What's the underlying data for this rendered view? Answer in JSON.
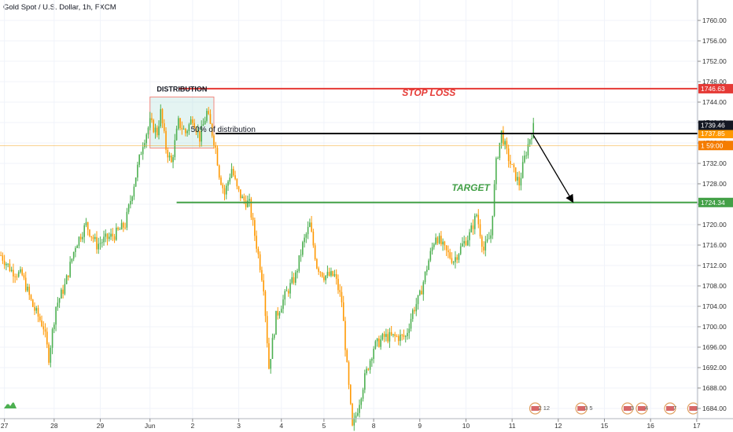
{
  "window": {
    "title": "Gold Spot / U.S. Dollar, 1h, FXCM"
  },
  "colors": {
    "up": "#4caf50",
    "down": "#ff9800",
    "stop": "#e53935",
    "target": "#43a047",
    "mid": "#000000",
    "current": "#f5a623"
  },
  "chart_data": {
    "type": "candlestick",
    "title": "Gold Spot / U.S. Dollar, 1h, FXCM",
    "ylim": [
      1682,
      1764
    ],
    "y_ticks": [
      1684,
      1688,
      1692,
      1696,
      1700,
      1704,
      1708,
      1712,
      1716,
      1720,
      1724,
      1728,
      1732,
      1736,
      1740,
      1744,
      1748,
      1752,
      1756,
      1760
    ],
    "x_ticks": [
      "27",
      "28",
      "29",
      "Jun",
      "2",
      "3",
      "4",
      "5",
      "8",
      "9",
      "10",
      "11",
      "12",
      "15",
      "16",
      "17"
    ],
    "x_tick_index": [
      2,
      30,
      56,
      84,
      108,
      134,
      158,
      182,
      210,
      236,
      262,
      288,
      314,
      340,
      366,
      392
    ],
    "n_bars": 393,
    "price_path": [
      [
        0,
        1714
      ],
      [
        6,
        1711
      ],
      [
        12,
        1710
      ],
      [
        18,
        1704
      ],
      [
        24,
        1700
      ],
      [
        27,
        1694
      ],
      [
        31,
        1704
      ],
      [
        36,
        1708
      ],
      [
        42,
        1716
      ],
      [
        48,
        1720
      ],
      [
        54,
        1716
      ],
      [
        58,
        1717
      ],
      [
        64,
        1718
      ],
      [
        70,
        1720
      ],
      [
        75,
        1728
      ],
      [
        80,
        1736
      ],
      [
        84,
        1740
      ],
      [
        88,
        1738
      ],
      [
        90,
        1742
      ],
      [
        93,
        1735
      ],
      [
        96,
        1732
      ],
      [
        100,
        1740
      ],
      [
        104,
        1738
      ],
      [
        108,
        1741
      ],
      [
        112,
        1737
      ],
      [
        116,
        1742
      ],
      [
        119,
        1738
      ],
      [
        121,
        1735
      ],
      [
        123,
        1730
      ],
      [
        126,
        1726
      ],
      [
        130,
        1731
      ],
      [
        133,
        1727
      ],
      [
        136,
        1725
      ],
      [
        140,
        1724
      ],
      [
        144,
        1716
      ],
      [
        148,
        1708
      ],
      [
        151,
        1692
      ],
      [
        155,
        1702
      ],
      [
        160,
        1706
      ],
      [
        166,
        1710
      ],
      [
        170,
        1716
      ],
      [
        174,
        1720
      ],
      [
        178,
        1712
      ],
      [
        182,
        1710
      ],
      [
        188,
        1710
      ],
      [
        192,
        1705
      ],
      [
        195,
        1692
      ],
      [
        198,
        1680
      ],
      [
        201,
        1684
      ],
      [
        205,
        1690
      ],
      [
        210,
        1696
      ],
      [
        216,
        1698
      ],
      [
        222,
        1698
      ],
      [
        228,
        1698
      ],
      [
        232,
        1703
      ],
      [
        236,
        1706
      ],
      [
        241,
        1713
      ],
      [
        245,
        1718
      ],
      [
        250,
        1715
      ],
      [
        255,
        1713
      ],
      [
        260,
        1716
      ],
      [
        264,
        1718
      ],
      [
        268,
        1722
      ],
      [
        272,
        1715
      ],
      [
        276,
        1718
      ],
      [
        279,
        1732
      ],
      [
        282,
        1738
      ],
      [
        285,
        1734
      ],
      [
        288,
        1731
      ],
      [
        292,
        1728
      ],
      [
        295,
        1733
      ],
      [
        298,
        1737
      ],
      [
        300,
        1739
      ]
    ],
    "annotations": {
      "distribution_label": "DISTRIBUTION",
      "mid_label": "50% of distribution",
      "stop_label": "STOP LOSS",
      "target_label": "TARGET"
    },
    "levels": {
      "stop_loss": 1746.63,
      "high": 1739.46,
      "mid": 1737.85,
      "current": 1735.5,
      "target": 1724.34,
      "distribution_high": 1745,
      "distribution_low": 1735
    },
    "price_labels": {
      "stop_loss": "1746.63",
      "high": "1739.46",
      "mid": "1737.85",
      "current": "1  59:00",
      "target": "1724.34"
    },
    "arrow": {
      "from": [
        300,
        1737.5
      ],
      "to": [
        322,
        1724.6
      ]
    },
    "distribution_box": {
      "x0": 84,
      "x1": 120
    },
    "event_markers": [
      {
        "index": 301,
        "label": "2 12"
      },
      {
        "index": 327,
        "label": "3 5"
      },
      {
        "index": 353,
        "label": "3"
      },
      {
        "index": 361,
        "label": "4"
      },
      {
        "index": 377,
        "label": "7"
      },
      {
        "index": 390,
        "label": "8"
      }
    ]
  }
}
